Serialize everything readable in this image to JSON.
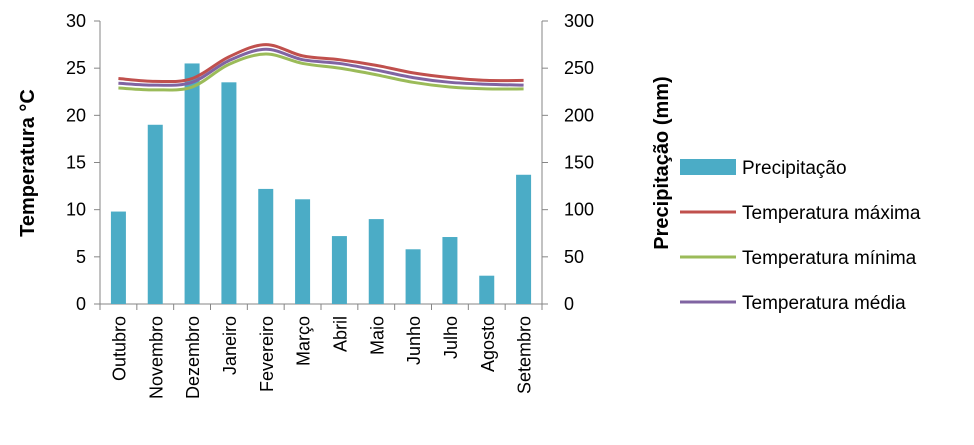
{
  "chart_data": {
    "type": "bar",
    "categories": [
      "Outubro",
      "Novembro",
      "Dezembro",
      "Janeiro",
      "Fevereiro",
      "Março",
      "Abril",
      "Maio",
      "Junho",
      "Julho",
      "Agosto",
      "Setembro"
    ],
    "series": [
      {
        "name": "Precipitação",
        "type": "bar",
        "axis": "right",
        "color": "#4BACC6",
        "values": [
          98,
          190,
          255,
          235,
          122,
          111,
          72,
          90,
          58,
          71,
          30,
          137
        ]
      },
      {
        "name": "Temperatura máxima",
        "type": "line",
        "axis": "left",
        "color": "#C0504D",
        "values": [
          23.9,
          23.6,
          23.9,
          26.2,
          27.5,
          26.3,
          25.9,
          25.3,
          24.5,
          24.0,
          23.7,
          23.7
        ]
      },
      {
        "name": "Temperatura mínima",
        "type": "line",
        "axis": "left",
        "color": "#9BBB59",
        "values": [
          22.9,
          22.7,
          23.0,
          25.4,
          26.5,
          25.5,
          25.0,
          24.3,
          23.5,
          23.0,
          22.8,
          22.8
        ]
      },
      {
        "name": "Temperatura média",
        "type": "line",
        "axis": "left",
        "color": "#8064A2",
        "values": [
          23.4,
          23.2,
          23.5,
          25.8,
          27.0,
          25.9,
          25.5,
          24.8,
          24.0,
          23.5,
          23.3,
          23.2
        ]
      }
    ],
    "ylabel": "Temperatura °C",
    "ylabel_right": "Precipitação (mm)",
    "ylim": [
      0,
      30
    ],
    "ylim_right": [
      0,
      300
    ],
    "yticks": [
      "0",
      "5",
      "10",
      "15",
      "20",
      "25",
      "30"
    ],
    "yticks_right": [
      "0",
      "50",
      "100",
      "150",
      "200",
      "250",
      "300"
    ],
    "grid": false,
    "legend_position": "right"
  }
}
